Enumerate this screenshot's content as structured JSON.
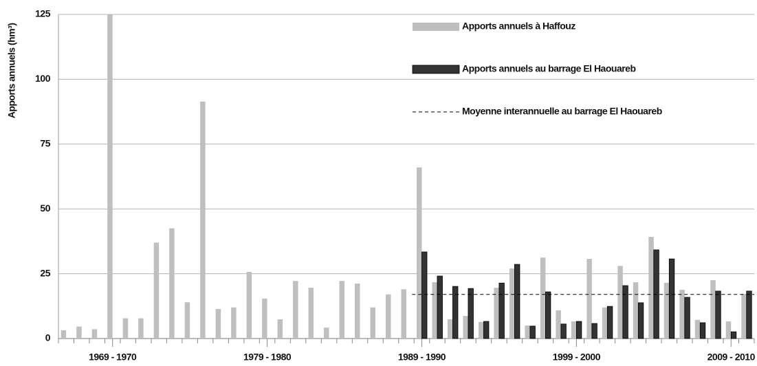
{
  "chart_data": {
    "type": "bar",
    "y_label": "Apports annuels (hm³)",
    "categories": [
      null,
      null,
      null,
      "1969 - 1970",
      null,
      null,
      null,
      null,
      null,
      null,
      null,
      null,
      null,
      "1979 - 1980",
      null,
      null,
      null,
      null,
      null,
      null,
      null,
      null,
      null,
      "1989 - 1990",
      null,
      null,
      null,
      null,
      null,
      null,
      null,
      null,
      null,
      "1999 - 2000",
      null,
      null,
      null,
      null,
      null,
      null,
      null,
      null,
      null,
      "2009 - 2010",
      null
    ],
    "series": [
      {
        "name": "Apports annuels à Haffouz",
        "color": "#bfbfbf",
        "values": [
          3.2,
          4.6,
          3.6,
          125,
          7.8,
          7.8,
          37,
          42.5,
          14,
          91.4,
          11.4,
          12,
          25.7,
          15.4,
          7.4,
          22.2,
          19.6,
          4.2,
          22.2,
          21.2,
          12,
          17,
          19,
          66,
          21.7,
          7.4,
          8.7,
          6.4,
          19.6,
          27,
          5,
          31.2,
          10.9,
          6.6,
          30.7,
          12,
          28,
          21.7,
          39.2,
          21.5,
          18.8,
          7.2,
          22.5,
          6.6,
          17.2
        ]
      },
      {
        "name": "Apports annuels au barrage El Haouareb",
        "color": "#333333",
        "values": [
          null,
          null,
          null,
          null,
          null,
          null,
          null,
          null,
          null,
          null,
          null,
          null,
          null,
          null,
          null,
          null,
          null,
          null,
          null,
          null,
          null,
          null,
          null,
          33.4,
          24.1,
          20.1,
          19.3,
          6.6,
          21.4,
          28.6,
          4.8,
          18,
          5.6,
          6.6,
          5.8,
          12.4,
          20.4,
          13.8,
          34.2,
          30.7,
          15.9,
          6.1,
          18.3,
          2.6,
          18.3
        ]
      }
    ],
    "mean_line": {
      "name": "Moyenne interannuelle au barrage El Haouareb",
      "value": 17,
      "color": "#000000"
    },
    "ylim": [
      0,
      125
    ],
    "yticks": [
      0,
      25,
      50,
      75,
      100,
      125
    ],
    "grid": true,
    "legend": "top right"
  }
}
